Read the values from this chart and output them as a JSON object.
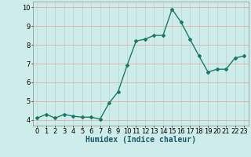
{
  "title": "",
  "xlabel": "Humidex (Indice chaleur)",
  "x": [
    0,
    1,
    2,
    3,
    4,
    5,
    6,
    7,
    8,
    9,
    10,
    11,
    12,
    13,
    14,
    15,
    16,
    17,
    18,
    19,
    20,
    21,
    22,
    23
  ],
  "y": [
    4.1,
    4.3,
    4.1,
    4.3,
    4.2,
    4.15,
    4.15,
    4.05,
    4.9,
    5.5,
    6.9,
    8.2,
    8.3,
    8.5,
    8.5,
    9.9,
    9.2,
    8.3,
    7.4,
    6.55,
    6.7,
    6.7,
    7.3,
    7.4
  ],
  "line_color": "#1a7a6a",
  "bg_color": "#ceecea",
  "grid_color": "#add8d5",
  "red_grid_color": "#e8a0a0",
  "ylim": [
    3.7,
    10.3
  ],
  "xlim": [
    -0.5,
    23.5
  ],
  "yticks": [
    4,
    5,
    6,
    7,
    8,
    9,
    10
  ],
  "xticks": [
    0,
    1,
    2,
    3,
    4,
    5,
    6,
    7,
    8,
    9,
    10,
    11,
    12,
    13,
    14,
    15,
    16,
    17,
    18,
    19,
    20,
    21,
    22,
    23
  ],
  "xlabel_fontsize": 7,
  "tick_fontsize": 6,
  "marker": "D",
  "marker_size": 2.0,
  "line_width": 1.0
}
